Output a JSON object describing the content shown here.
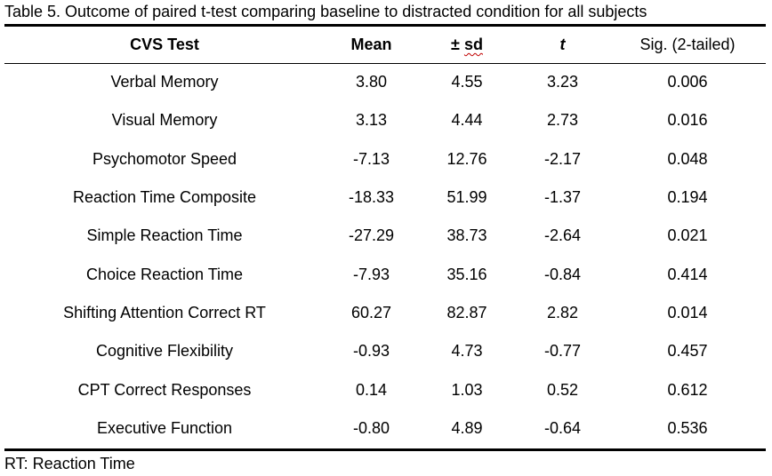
{
  "caption": "Table 5.  Outcome of paired t-test comparing baseline to distracted condition for all subjects",
  "headers": {
    "test": "CVS Test",
    "mean": "Mean",
    "sd_prefix": "± ",
    "sd": "sd",
    "t": "t",
    "sig": "Sig. (2-tailed)"
  },
  "rows": [
    {
      "test": "Verbal Memory",
      "mean": "3.80",
      "sd": "4.55",
      "t": "3.23",
      "sig": "0.006"
    },
    {
      "test": "Visual Memory",
      "mean": "3.13",
      "sd": "4.44",
      "t": "2.73",
      "sig": "0.016"
    },
    {
      "test": "Psychomotor Speed",
      "mean": "-7.13",
      "sd": "12.76",
      "t": "-2.17",
      "sig": "0.048"
    },
    {
      "test": "Reaction Time Composite",
      "mean": "-18.33",
      "sd": "51.99",
      "t": "-1.37",
      "sig": "0.194"
    },
    {
      "test": "Simple Reaction Time",
      "mean": "-27.29",
      "sd": "38.73",
      "t": "-2.64",
      "sig": "0.021"
    },
    {
      "test": "Choice Reaction Time",
      "mean": "-7.93",
      "sd": "35.16",
      "t": "-0.84",
      "sig": "0.414"
    },
    {
      "test": "Shifting Attention Correct RT",
      "mean": "60.27",
      "sd": "82.87",
      "t": "2.82",
      "sig": "0.014"
    },
    {
      "test": "Cognitive Flexibility",
      "mean": "-0.93",
      "sd": "4.73",
      "t": "-0.77",
      "sig": "0.457"
    },
    {
      "test": "CPT Correct Responses",
      "mean": "0.14",
      "sd": "1.03",
      "t": "0.52",
      "sig": "0.612"
    },
    {
      "test": "Executive Function",
      "mean": "-0.80",
      "sd": "4.89",
      "t": "-0.64",
      "sig": "0.536"
    }
  ],
  "footnote": "RT: Reaction Time"
}
